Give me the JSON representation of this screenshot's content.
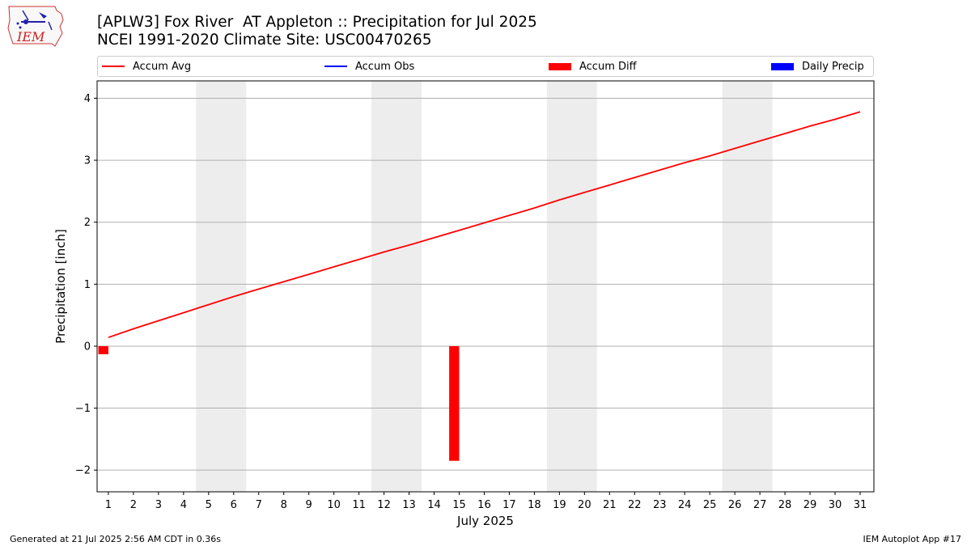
{
  "header": {
    "title_line1": "[APLW3] Fox River  AT Appleton :: Precipitation for Jul 2025",
    "title_line2": "NCEI 1991-2020 Climate Site: USC00470265",
    "logo_text": "IEM"
  },
  "footer": {
    "left": "Generated at 21 Jul 2025 2:56 AM CDT in 0.36s",
    "right": "IEM Autoplot App #17"
  },
  "colors": {
    "accum_avg": "#ff0000",
    "accum_obs": "#0000ff",
    "accum_diff": "#ff0000",
    "daily_precip": "#0000ff",
    "weekend_shade": "#ededed",
    "grid": "#b0b0b0"
  },
  "chart_data": {
    "type": "line",
    "title": "[APLW3] Fox River  AT Appleton :: Precipitation for Jul 2025",
    "subtitle": "NCEI 1991-2020 Climate Site: USC00470265",
    "xlabel": "July 2025",
    "ylabel": "Precipitation [inch]",
    "xlim": [
      0.55,
      31.55
    ],
    "ylim": [
      -2.35,
      4.28
    ],
    "yticks": [
      -2,
      -1,
      0,
      1,
      2,
      3,
      4
    ],
    "ytick_labels": [
      "−2",
      "−1",
      "0",
      "1",
      "2",
      "3",
      "4"
    ],
    "x": [
      1,
      2,
      3,
      4,
      5,
      6,
      7,
      8,
      9,
      10,
      11,
      12,
      13,
      14,
      15,
      16,
      17,
      18,
      19,
      20,
      21,
      22,
      23,
      24,
      25,
      26,
      27,
      28,
      29,
      30,
      31
    ],
    "xtick_labels": [
      "1",
      "2",
      "3",
      "4",
      "5",
      "6",
      "7",
      "8",
      "9",
      "10",
      "11",
      "12",
      "13",
      "14",
      "15",
      "16",
      "17",
      "18",
      "19",
      "20",
      "21",
      "22",
      "23",
      "24",
      "25",
      "26",
      "27",
      "28",
      "29",
      "30",
      "31"
    ],
    "grid": "horizontal",
    "legend_placement": "top",
    "legend": [
      "Accum Avg",
      "Accum Obs",
      "Accum Diff",
      "Daily Precip"
    ],
    "weekend_spans": [
      [
        5,
        6
      ],
      [
        12,
        13
      ],
      [
        19,
        20
      ],
      [
        26,
        27
      ]
    ],
    "series": [
      {
        "name": "Accum Avg",
        "kind": "line",
        "values": [
          0.14,
          0.28,
          0.41,
          0.54,
          0.67,
          0.8,
          0.92,
          1.04,
          1.16,
          1.28,
          1.4,
          1.52,
          1.63,
          1.75,
          1.87,
          1.99,
          2.11,
          2.23,
          2.36,
          2.48,
          2.6,
          2.72,
          2.84,
          2.96,
          3.07,
          3.19,
          3.31,
          3.43,
          3.55,
          3.66,
          3.78
        ]
      },
      {
        "name": "Accum Diff",
        "kind": "bar",
        "points": [
          {
            "x": 1,
            "value": -0.13
          },
          {
            "x": 15,
            "value": -1.85
          }
        ]
      }
    ]
  }
}
